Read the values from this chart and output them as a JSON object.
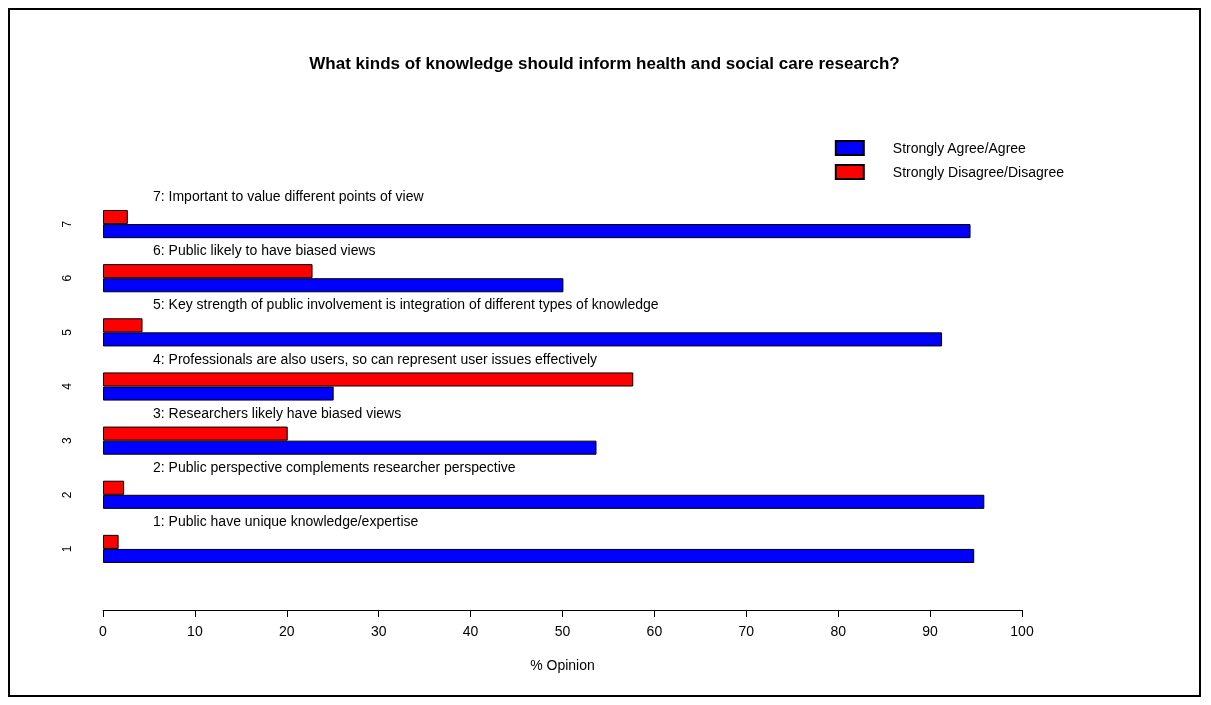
{
  "chart_data": {
    "type": "bar",
    "orientation": "horizontal",
    "title": "What kinds of knowledge should inform health and social care research?",
    "xlabel": "% Opinion",
    "categories": [
      "7",
      "6",
      "5",
      "4",
      "3",
      "2",
      "1"
    ],
    "series": [
      {
        "name": "Strongly Agree/Agree",
        "color": "#0000ff",
        "values": [
          94.4,
          50.1,
          91.3,
          25.1,
          53.7,
          95.9,
          94.8
        ]
      },
      {
        "name": "Strongly Disagree/Disagree",
        "color": "#ff0000",
        "values": [
          2.7,
          22.8,
          4.3,
          57.7,
          20.1,
          2.3,
          1.7
        ]
      }
    ],
    "xlim": [
      0,
      100
    ],
    "xticks": [
      0,
      10,
      20,
      30,
      40,
      50,
      60,
      70,
      80,
      90,
      100
    ],
    "annotations": [
      {
        "text": "7: Important to value different points of view",
        "y": "7"
      },
      {
        "text": "6: Public likely to have biased views",
        "y": "6"
      },
      {
        "text": "5: Key strength of public involvement is integration of different types of knowledge",
        "y": "5"
      },
      {
        "text": "4: Professionals are also users, so can represent user issues effectively",
        "y": "4"
      },
      {
        "text": "3: Researchers likely have biased views",
        "y": "3"
      },
      {
        "text": "2: Public perspective complements researcher perspective",
        "y": "2"
      },
      {
        "text": "1: Public have unique knowledge/expertise",
        "y": "1"
      }
    ],
    "legend": "top right",
    "grid": false
  }
}
